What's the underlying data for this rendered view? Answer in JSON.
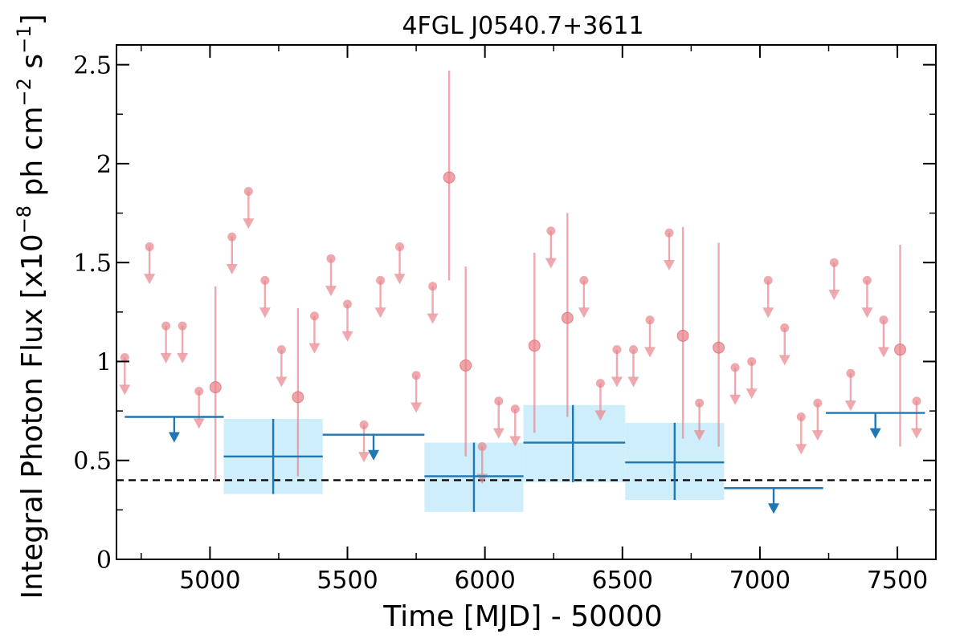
{
  "chart_data": {
    "type": "scatter",
    "title": "4FGL J0540.7+3611",
    "xlabel": "Time [MJD] - 50000",
    "ylabel": "Integral Photon Flux [x10",
    "ylabel_exp1": "−8",
    "ylabel_mid": " ph cm",
    "ylabel_exp2": "−2",
    "ylabel_mid2": " s",
    "ylabel_exp3": "−1",
    "ylabel_end": "]",
    "xlim": [
      4660,
      7640
    ],
    "ylim": [
      0,
      2.6
    ],
    "xticks": [
      5000,
      5500,
      6000,
      6500,
      7000,
      7500
    ],
    "yticks": [
      0,
      0.5,
      1,
      1.5,
      2,
      2.5
    ],
    "ytick_labels": [
      "0",
      "0.5",
      "1",
      "1.5",
      "2",
      "2.5"
    ],
    "colors": {
      "short_bins": "#e8858b",
      "long_bins": "#1f77b4",
      "box_fill": "#cfeefb",
      "baseline": "#000000"
    },
    "baseline": 0.4,
    "short_bin_upper_limits": [
      {
        "x": 4690,
        "y": 1.02
      },
      {
        "x": 4780,
        "y": 1.58
      },
      {
        "x": 4840,
        "y": 1.18
      },
      {
        "x": 4900,
        "y": 1.18
      },
      {
        "x": 4960,
        "y": 0.85
      },
      {
        "x": 5080,
        "y": 1.63
      },
      {
        "x": 5140,
        "y": 1.86
      },
      {
        "x": 5200,
        "y": 1.41
      },
      {
        "x": 5260,
        "y": 1.06
      },
      {
        "x": 5380,
        "y": 1.23
      },
      {
        "x": 5440,
        "y": 1.52
      },
      {
        "x": 5500,
        "y": 1.29
      },
      {
        "x": 5560,
        "y": 0.68
      },
      {
        "x": 5620,
        "y": 1.41
      },
      {
        "x": 5690,
        "y": 1.58
      },
      {
        "x": 5750,
        "y": 0.93
      },
      {
        "x": 5810,
        "y": 1.38
      },
      {
        "x": 5990,
        "y": 0.57
      },
      {
        "x": 6050,
        "y": 0.8
      },
      {
        "x": 6110,
        "y": 0.76
      },
      {
        "x": 6240,
        "y": 1.66
      },
      {
        "x": 6360,
        "y": 1.41
      },
      {
        "x": 6420,
        "y": 0.89
      },
      {
        "x": 6480,
        "y": 1.06
      },
      {
        "x": 6540,
        "y": 1.06
      },
      {
        "x": 6600,
        "y": 1.21
      },
      {
        "x": 6670,
        "y": 1.65
      },
      {
        "x": 6780,
        "y": 0.79
      },
      {
        "x": 6910,
        "y": 0.97
      },
      {
        "x": 6970,
        "y": 1.0
      },
      {
        "x": 7030,
        "y": 1.41
      },
      {
        "x": 7090,
        "y": 1.17
      },
      {
        "x": 7150,
        "y": 0.72
      },
      {
        "x": 7210,
        "y": 0.79
      },
      {
        "x": 7270,
        "y": 1.5
      },
      {
        "x": 7330,
        "y": 0.94
      },
      {
        "x": 7390,
        "y": 1.41
      },
      {
        "x": 7450,
        "y": 1.21
      },
      {
        "x": 7570,
        "y": 0.8
      }
    ],
    "short_bin_detections": [
      {
        "x": 5020,
        "y": 0.87,
        "ylo": 0.4,
        "yhi": 1.38
      },
      {
        "x": 5320,
        "y": 0.82,
        "ylo": 0.42,
        "yhi": 1.27
      },
      {
        "x": 5870,
        "y": 1.93,
        "ylo": 1.41,
        "yhi": 2.47
      },
      {
        "x": 5930,
        "y": 0.98,
        "ylo": 0.52,
        "yhi": 1.48
      },
      {
        "x": 6180,
        "y": 1.08,
        "ylo": 0.64,
        "yhi": 1.55
      },
      {
        "x": 6300,
        "y": 1.22,
        "ylo": 0.72,
        "yhi": 1.75
      },
      {
        "x": 6720,
        "y": 1.13,
        "ylo": 0.61,
        "yhi": 1.68
      },
      {
        "x": 6850,
        "y": 1.07,
        "ylo": 0.57,
        "yhi": 1.6
      },
      {
        "x": 7510,
        "y": 1.06,
        "ylo": 0.57,
        "yhi": 1.59
      }
    ],
    "long_bin_upper_limits": [
      {
        "x0": 4690,
        "x1": 5050,
        "y": 0.72
      },
      {
        "x0": 5410,
        "x1": 5780,
        "y": 0.63
      },
      {
        "x0": 6870,
        "x1": 7230,
        "y": 0.36
      },
      {
        "x0": 7240,
        "x1": 7600,
        "y": 0.74
      }
    ],
    "long_bin_detections": [
      {
        "x0": 5050,
        "x1": 5410,
        "x": 5230,
        "y": 0.52,
        "ylo": 0.33,
        "yhi": 0.71
      },
      {
        "x0": 5780,
        "x1": 6140,
        "x": 5960,
        "y": 0.42,
        "ylo": 0.24,
        "yhi": 0.59
      },
      {
        "x0": 6140,
        "x1": 6510,
        "x": 6320,
        "y": 0.59,
        "ylo": 0.39,
        "yhi": 0.78
      },
      {
        "x0": 6510,
        "x1": 6870,
        "x": 6690,
        "y": 0.49,
        "ylo": 0.3,
        "yhi": 0.69
      }
    ]
  }
}
